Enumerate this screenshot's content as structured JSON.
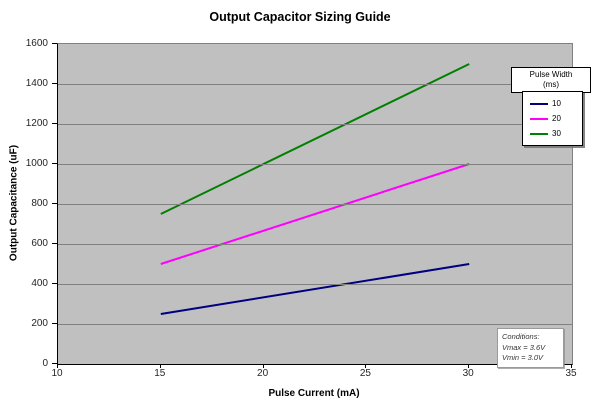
{
  "chart_data": {
    "type": "line",
    "title": "Output Capacitor Sizing Guide",
    "xlabel": "Pulse Current (mA)",
    "ylabel": "Output Capacitance (uF)",
    "xlim": [
      10,
      35
    ],
    "ylim": [
      0,
      1600
    ],
    "x_ticks": [
      10,
      15,
      20,
      25,
      30,
      35
    ],
    "y_ticks": [
      0,
      200,
      400,
      600,
      800,
      1000,
      1200,
      1400,
      1600
    ],
    "x": [
      15,
      30
    ],
    "series": [
      {
        "name": "10",
        "color": "#000080",
        "values": [
          250,
          500
        ]
      },
      {
        "name": "20",
        "color": "#FF00FF",
        "values": [
          500,
          1000
        ]
      },
      {
        "name": "30",
        "color": "#008000",
        "values": [
          750,
          1500
        ]
      }
    ],
    "legend": {
      "title_lines": [
        "Pulse Width",
        "(ms)"
      ],
      "position": "right-inside-top"
    },
    "annotation_lines": [
      "Conditions:",
      "Vmax = 3.6V",
      "Vmin = 3.0V"
    ],
    "grid": "horizontal",
    "plot_bg": "#C0C0C0",
    "grid_color": "#808080",
    "axis_color": "#000000"
  }
}
